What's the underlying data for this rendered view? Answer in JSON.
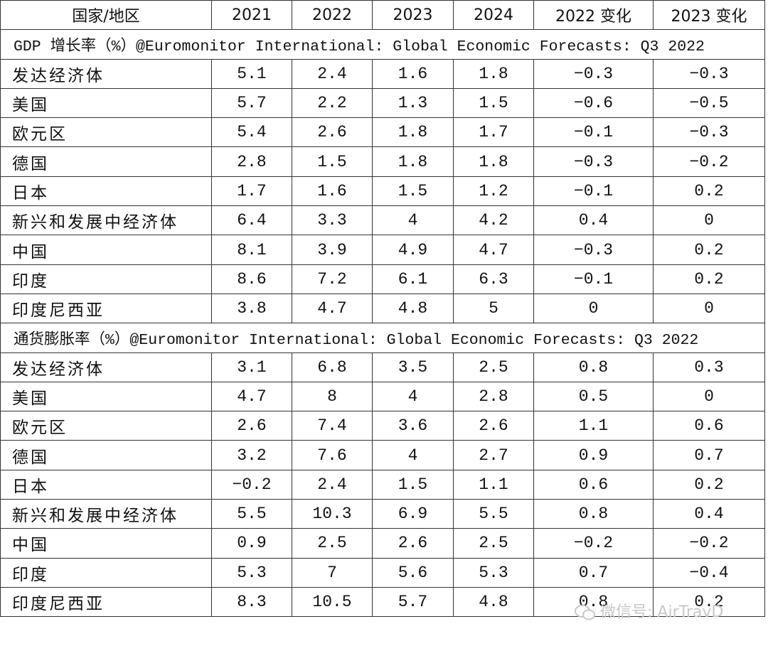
{
  "header": {
    "cells": [
      "国家/地区",
      "2021",
      "2022",
      "2023",
      "2024",
      "2022 变化",
      "2023 变化"
    ]
  },
  "sections": [
    {
      "title": "GDP 增长率（%）@Euromonitor International: Global Economic Forecasts: Q3 2022",
      "rows": [
        [
          "发达经济体",
          "5.1",
          "2.4",
          "1.6",
          "1.8",
          "−0.3",
          "−0.3"
        ],
        [
          "美国",
          "5.7",
          "2.2",
          "1.3",
          "1.5",
          "−0.6",
          "−0.5"
        ],
        [
          "欧元区",
          "5.4",
          "2.6",
          "1.8",
          "1.7",
          "−0.1",
          "−0.3"
        ],
        [
          "德国",
          "2.8",
          "1.5",
          "1.8",
          "1.8",
          "−0.3",
          "−0.2"
        ],
        [
          "日本",
          "1.7",
          "1.6",
          "1.5",
          "1.2",
          "−0.1",
          "0.2"
        ],
        [
          "新兴和发展中经济体",
          "6.4",
          "3.3",
          "4",
          "4.2",
          "0.4",
          "0"
        ],
        [
          "中国",
          "8.1",
          "3.9",
          "4.9",
          "4.7",
          "−0.3",
          "0.2"
        ],
        [
          "印度",
          "8.6",
          "7.2",
          "6.1",
          "6.3",
          "−0.1",
          "0.2"
        ],
        [
          "印度尼西亚",
          "3.8",
          "4.7",
          "4.8",
          "5",
          "0",
          "0"
        ]
      ]
    },
    {
      "title": "通货膨胀率（%）@Euromonitor International: Global Economic Forecasts: Q3 2022",
      "rows": [
        [
          "发达经济体",
          "3.1",
          "6.8",
          "3.5",
          "2.5",
          "0.8",
          "0.3"
        ],
        [
          "美国",
          "4.7",
          "8",
          "4",
          "2.8",
          "0.5",
          "0"
        ],
        [
          "欧元区",
          "2.6",
          "7.4",
          "3.6",
          "2.6",
          "1.1",
          "0.6"
        ],
        [
          "德国",
          "3.2",
          "7.6",
          "4",
          "2.7",
          "0.9",
          "0.7"
        ],
        [
          "日本",
          "−0.2",
          "2.4",
          "1.5",
          "1.1",
          "0.6",
          "0.2"
        ],
        [
          "新兴和发展中经济体",
          "5.5",
          "10.3",
          "6.9",
          "5.5",
          "0.8",
          "0.4"
        ],
        [
          "中国",
          "0.9",
          "2.5",
          "2.6",
          "2.5",
          "−0.2",
          "−0.2"
        ],
        [
          "印度",
          "5.3",
          "7",
          "5.6",
          "5.3",
          "0.7",
          "−0.4"
        ],
        [
          "印度尼西亚",
          "8.3",
          "10.5",
          "5.7",
          "4.8",
          "0.8",
          "0.2"
        ]
      ]
    }
  ],
  "watermark": {
    "text": "微信号: AirTravD"
  }
}
